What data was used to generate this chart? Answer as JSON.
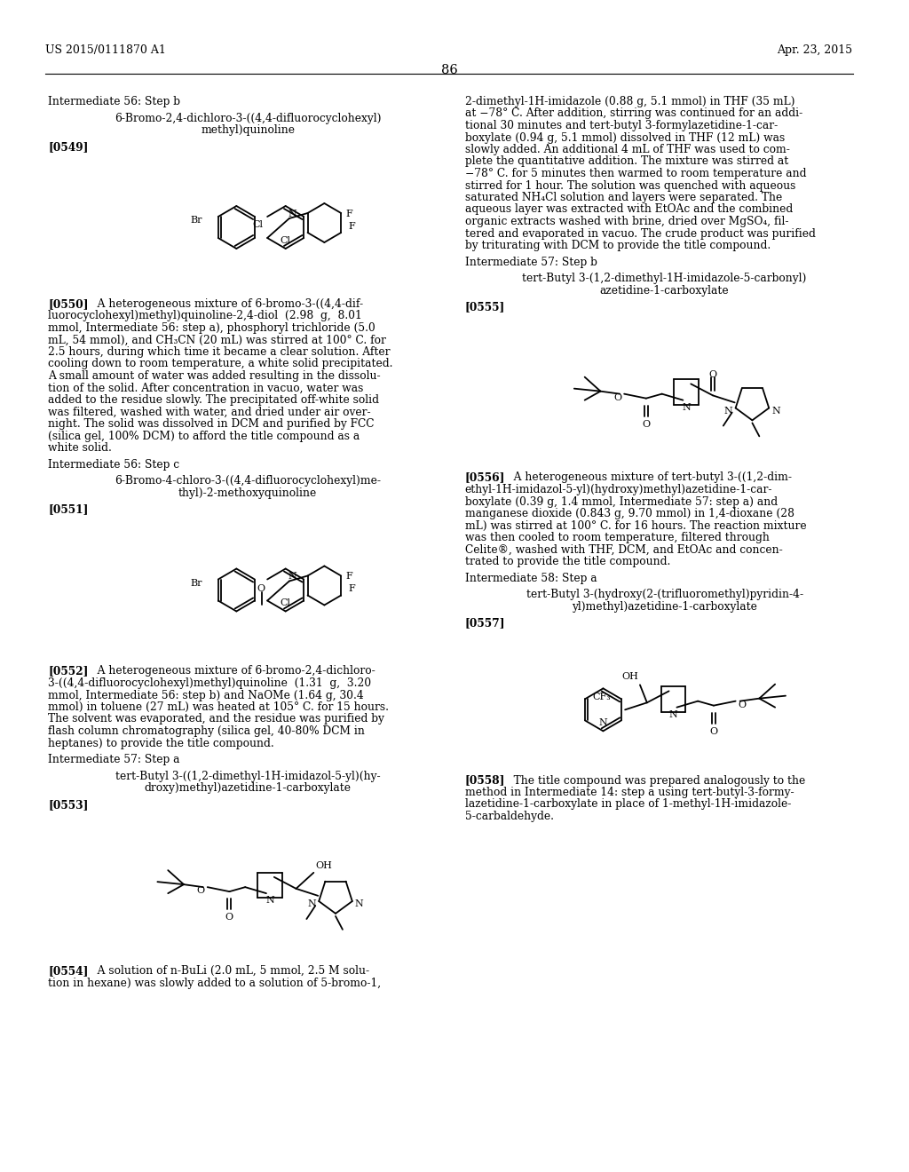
{
  "bg": "#ffffff",
  "header_left": "US 2015/0111870 A1",
  "header_right": "Apr. 23, 2015",
  "page_num": "86"
}
